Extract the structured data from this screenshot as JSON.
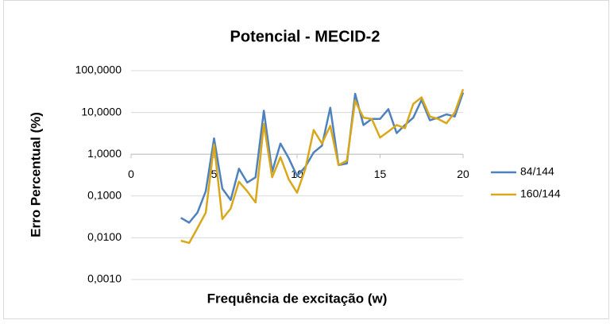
{
  "chart_data": {
    "type": "line",
    "title": "Potencial - MECID-2",
    "xlabel": "Frequência de excitação (w)",
    "ylabel": "Erro Percentual (%)",
    "x": [
      3,
      3.5,
      4,
      4.5,
      5,
      5.5,
      6,
      6.5,
      7,
      7.5,
      8,
      8.5,
      9,
      9.5,
      10,
      10.5,
      11,
      11.5,
      12,
      12.5,
      13,
      13.5,
      14,
      14.5,
      15,
      15.5,
      16,
      16.5,
      17,
      17.5,
      18,
      18.5,
      19,
      19.5,
      20
    ],
    "series": [
      {
        "name": "84/144",
        "color": "#4f81bd",
        "values": [
          0.03,
          0.023,
          0.04,
          0.13,
          2.4,
          0.15,
          0.08,
          0.45,
          0.21,
          0.28,
          11,
          0.38,
          1.8,
          0.8,
          0.3,
          0.5,
          1.1,
          1.6,
          13,
          0.55,
          0.6,
          28,
          5,
          7,
          7,
          12,
          3.2,
          5,
          7.5,
          20,
          6.5,
          7.5,
          9,
          8,
          30
        ]
      },
      {
        "name": "160/144",
        "color": "#d9a71a",
        "values": [
          0.0085,
          0.0075,
          0.017,
          0.04,
          1.7,
          0.028,
          0.05,
          0.22,
          0.13,
          0.07,
          5.3,
          0.28,
          0.85,
          0.25,
          0.12,
          0.45,
          3.8,
          1.8,
          4.8,
          0.55,
          0.7,
          19,
          7.5,
          7,
          2.5,
          3.5,
          5,
          4.2,
          16,
          23,
          8,
          7,
          5.5,
          10,
          36
        ]
      }
    ],
    "xlim": [
      0,
      20
    ],
    "xticks": [
      0,
      5,
      10,
      15,
      20
    ],
    "ylim": [
      0.001,
      100
    ],
    "log_y": true,
    "x_axis_crosses": 1,
    "yticks": [
      {
        "value": 0.001,
        "label": "0,0010"
      },
      {
        "value": 0.01,
        "label": "0,0100"
      },
      {
        "value": 0.1,
        "label": "0,1000"
      },
      {
        "value": 1,
        "label": "1,0000"
      },
      {
        "value": 10,
        "label": "10,0000"
      },
      {
        "value": 100,
        "label": "100,0000"
      }
    ],
    "grid": true,
    "legend": "right"
  }
}
